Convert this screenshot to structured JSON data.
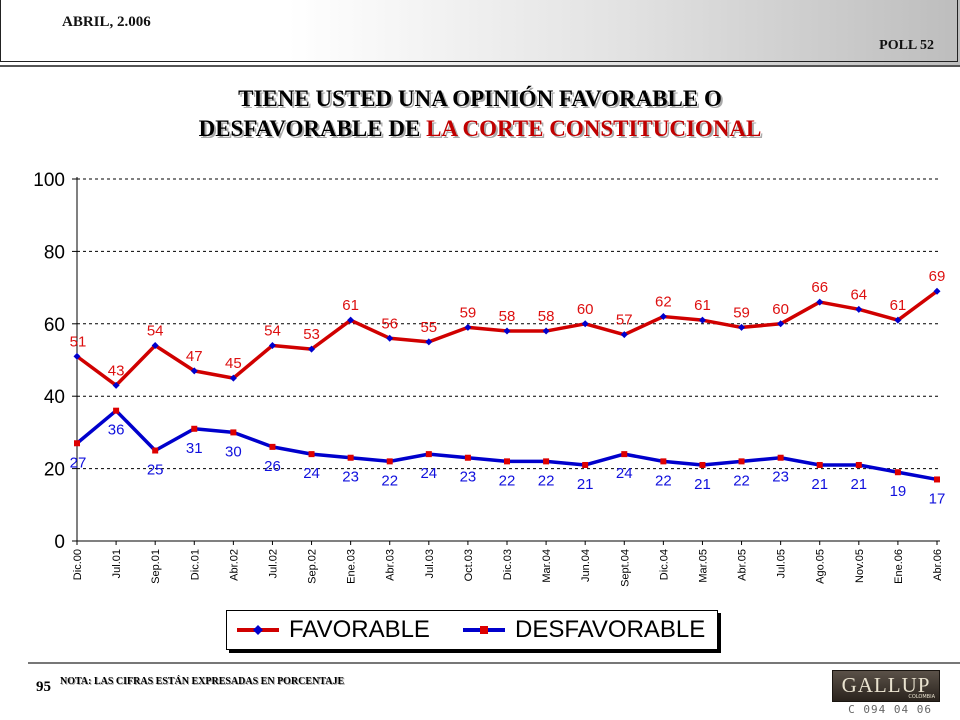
{
  "header": {
    "date": "ABRIL, 2.006",
    "poll": "POLL 52"
  },
  "title": {
    "line1": "TIENE USTED UNA OPINIÓN FAVORABLE O",
    "line2_prefix": "DESFAVORABLE DE ",
    "line2_highlight": "LA CORTE CONSTITUCIONAL"
  },
  "colors": {
    "favorable": "#d00000",
    "desfavorable": "#0000cc",
    "fav_label": "#dd1010",
    "des_label": "#1010dd"
  },
  "chart_data": {
    "type": "line",
    "categories": [
      "Dic.00",
      "Jul.01",
      "Sep.01",
      "Dic.01",
      "Abr.02",
      "Jul.02",
      "Sep.02",
      "Ene.03",
      "Abr.03",
      "Jul.03",
      "Oct.03",
      "Dic.03",
      "Mar.04",
      "Jun.04",
      "Sept.04",
      "Dic.04",
      "Mar.05",
      "Abr.05",
      "Jul.05",
      "Ago.05",
      "Nov.05",
      "Ene.06",
      "Abr.06"
    ],
    "series": [
      {
        "name": "FAVORABLE",
        "values": [
          51,
          43,
          54,
          47,
          45,
          54,
          53,
          61,
          56,
          55,
          59,
          58,
          58,
          60,
          57,
          62,
          61,
          59,
          60,
          66,
          64,
          61,
          69
        ]
      },
      {
        "name": "DESFAVORABLE",
        "values": [
          27,
          36,
          25,
          31,
          30,
          26,
          24,
          23,
          22,
          24,
          23,
          22,
          22,
          21,
          24,
          22,
          21,
          22,
          23,
          21,
          21,
          19,
          17
        ]
      }
    ],
    "yticks": [
      0,
      20,
      40,
      60,
      80,
      100
    ],
    "ylim": [
      0,
      100
    ],
    "grid": "horizontal dashed",
    "legend_position": "bottom"
  },
  "footer": {
    "page": "95",
    "note": "NOTA: LAS CIFRAS ESTÁN EXPRESADAS EN PORCENTAJE",
    "logo": "GALLUP",
    "logo_sub": "COLOMBIA",
    "code": "C 094 04 06"
  }
}
